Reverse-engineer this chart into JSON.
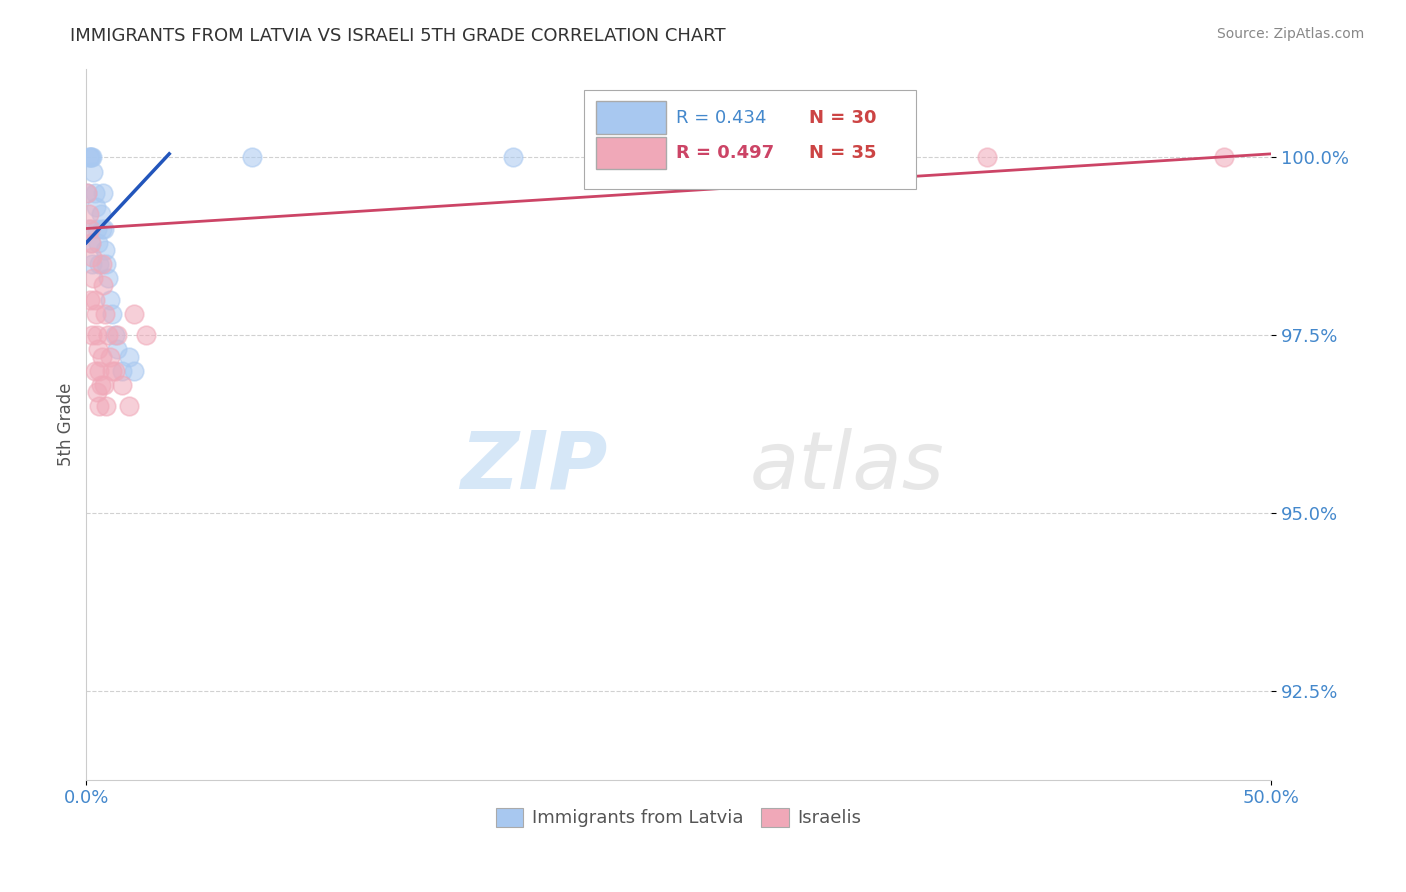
{
  "title": "IMMIGRANTS FROM LATVIA VS ISRAELI 5TH GRADE CORRELATION CHART",
  "source_text": "Source: ZipAtlas.com",
  "xmin": 0.0,
  "xmax": 50.0,
  "ymin": 91.25,
  "ymax": 101.25,
  "ytick_vals": [
    92.5,
    95.0,
    97.5,
    100.0
  ],
  "xtick_vals": [
    0.0,
    50.0
  ],
  "ylabel_label": "5th Grade",
  "blue_color": "#a8c8f0",
  "pink_color": "#f0a8b8",
  "blue_line_color": "#2255bb",
  "pink_line_color": "#cc4466",
  "legend_R_blue": "R = 0.434",
  "legend_N_blue": "N = 30",
  "legend_R_pink": "R = 0.497",
  "legend_N_pink": "N = 35",
  "watermark_zip": "ZIP",
  "watermark_atlas": "atlas",
  "blue_scatter_x": [
    0.1,
    0.15,
    0.2,
    0.25,
    0.3,
    0.35,
    0.4,
    0.45,
    0.5,
    0.55,
    0.6,
    0.65,
    0.7,
    0.75,
    0.8,
    0.85,
    0.9,
    1.0,
    1.1,
    1.2,
    1.3,
    1.5,
    1.8,
    2.0,
    0.05,
    0.12,
    0.18,
    0.22,
    7.0,
    18.0
  ],
  "blue_scatter_y": [
    100.0,
    100.0,
    100.0,
    100.0,
    99.8,
    99.5,
    99.3,
    99.0,
    98.8,
    98.5,
    99.2,
    99.0,
    99.5,
    99.0,
    98.7,
    98.5,
    98.3,
    98.0,
    97.8,
    97.5,
    97.3,
    97.0,
    97.2,
    97.0,
    99.5,
    99.0,
    98.8,
    98.5,
    100.0,
    100.0
  ],
  "pink_scatter_x": [
    0.05,
    0.1,
    0.15,
    0.2,
    0.25,
    0.3,
    0.35,
    0.4,
    0.45,
    0.5,
    0.55,
    0.6,
    0.65,
    0.7,
    0.8,
    0.9,
    1.0,
    1.2,
    1.5,
    1.8,
    2.0,
    2.5,
    0.15,
    0.25,
    0.35,
    0.45,
    0.55,
    0.65,
    0.75,
    0.85,
    1.1,
    1.3,
    25.0,
    38.0,
    48.0
  ],
  "pink_scatter_y": [
    99.5,
    99.2,
    99.0,
    98.8,
    98.6,
    98.3,
    98.0,
    97.8,
    97.5,
    97.3,
    97.0,
    96.8,
    98.5,
    98.2,
    97.8,
    97.5,
    97.2,
    97.0,
    96.8,
    96.5,
    97.8,
    97.5,
    98.0,
    97.5,
    97.0,
    96.7,
    96.5,
    97.2,
    96.8,
    96.5,
    97.0,
    97.5,
    100.0,
    100.0,
    100.0
  ],
  "grid_color": "#cccccc",
  "title_color": "#333333",
  "axis_label_color": "#555555",
  "tick_color": "#4488cc",
  "background_color": "#ffffff",
  "blue_line_x0": 0.0,
  "blue_line_y0": 98.8,
  "blue_line_x1": 3.5,
  "blue_line_y1": 100.05,
  "pink_line_x0": 0.0,
  "pink_line_y0": 99.0,
  "pink_line_x1": 50.0,
  "pink_line_y1": 100.05
}
